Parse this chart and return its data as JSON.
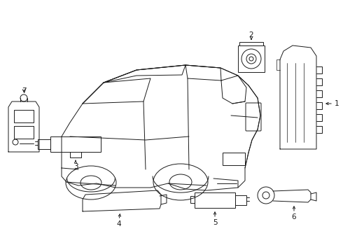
{
  "background_color": "#ffffff",
  "line_color": "#1a1a1a",
  "fig_width": 4.9,
  "fig_height": 3.6,
  "dpi": 100,
  "label_fontsize": 7.5,
  "lw": 0.7
}
